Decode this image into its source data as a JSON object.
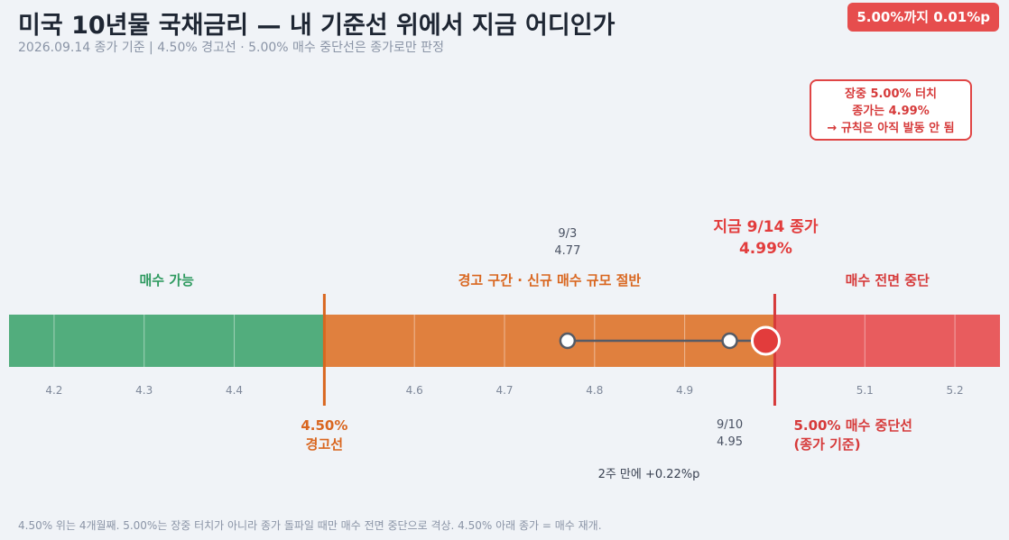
{
  "header": {
    "title": "미국 10년물 국채금리 — 내 기준선 위에서 지금 어디인가",
    "subtitle": "2026.09.14 종가 기준  |  4.50% 경고선 · 5.00% 매수 중단선은 종가로만 판정",
    "badge": "5.00%까지 0.01%p"
  },
  "callout": {
    "line1": "장중 5.00% 터치",
    "line2": "종가는 4.99%",
    "line3": "→ 규칙은 아직 발동 안 됨"
  },
  "footnote": "4.50% 위는 4개월째. 5.00%는 장중 터치가 아니라 종가 돌파일 때만 매수 전면 중단으로 격상. 4.50% 아래 종가 = 매수 재개.",
  "colors": {
    "green": "#52ad7d",
    "orange": "#e0803e",
    "red": "#e85c5e",
    "warn_line": "#d9661f",
    "stop_line": "#d63a3a",
    "marker_red": "#e23c3c",
    "path": "#555b66"
  },
  "chart_data": {
    "type": "scatter",
    "title": "미국 10년물 국채금리 — 내 기준선 위에서 지금 어디인가",
    "xlabel": "",
    "ylabel": "",
    "xlim": [
      4.15,
      5.25
    ],
    "ticks": [
      4.2,
      4.3,
      4.4,
      4.6,
      4.7,
      4.8,
      4.9,
      5.1,
      5.2
    ],
    "tick_labels": [
      "4.2",
      "4.3",
      "4.4",
      "4.6",
      "4.7",
      "4.8",
      "4.9",
      "5.1",
      "5.2"
    ],
    "zones": [
      {
        "label": "매수 가능",
        "from": 4.15,
        "to": 4.5,
        "color": "#52ad7d"
      },
      {
        "label": "경고 구간 · 신규 매수 규모 절반",
        "from": 4.5,
        "to": 5.0,
        "color": "#e0803e"
      },
      {
        "label": "매수 전면 중단",
        "from": 5.0,
        "to": 5.25,
        "color": "#e85c5e"
      }
    ],
    "thresholds": [
      {
        "value": 4.5,
        "label_value": "4.50%",
        "label_name": "경고선"
      },
      {
        "value": 5.0,
        "label_value": "5.00% 매수 중단선",
        "label_name": "(종가 기준)"
      }
    ],
    "points": [
      {
        "date": "9/3",
        "label": "4.77",
        "value": 4.77
      },
      {
        "date": "9/10",
        "label": "4.95",
        "value": 4.95
      },
      {
        "date": "지금 9/14 종가",
        "label": "4.99%",
        "value": 4.99
      }
    ],
    "change_label": "2주 만에 +0.22%p"
  }
}
